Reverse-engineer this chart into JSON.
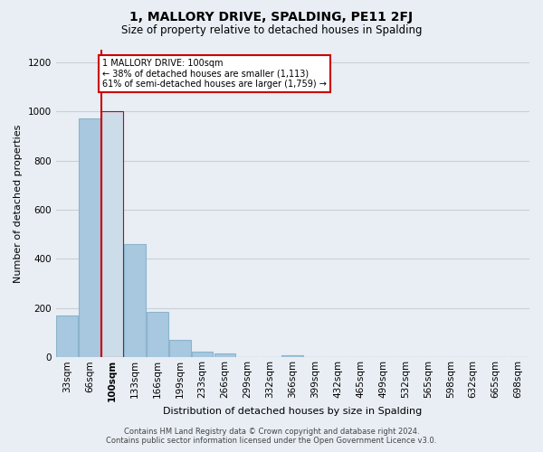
{
  "title": "1, MALLORY DRIVE, SPALDING, PE11 2FJ",
  "subtitle": "Size of property relative to detached houses in Spalding",
  "xlabel": "Distribution of detached houses by size in Spalding",
  "ylabel": "Number of detached properties",
  "bar_labels": [
    "33sqm",
    "66sqm",
    "100sqm",
    "133sqm",
    "166sqm",
    "199sqm",
    "233sqm",
    "266sqm",
    "299sqm",
    "332sqm",
    "366sqm",
    "399sqm",
    "432sqm",
    "465sqm",
    "499sqm",
    "532sqm",
    "565sqm",
    "598sqm",
    "632sqm",
    "665sqm",
    "698sqm"
  ],
  "bar_values": [
    170,
    970,
    1000,
    460,
    185,
    70,
    25,
    15,
    0,
    0,
    10,
    0,
    0,
    0,
    0,
    0,
    0,
    0,
    0,
    0,
    0
  ],
  "highlight_index": 2,
  "highlight_color": "#ccdce8",
  "normal_color": "#a8c8e0",
  "bar_edge_color": "#8ab4cc",
  "highlight_line_color": "#cc0000",
  "annotation_box_color": "#ffffff",
  "annotation_border_color": "#cc0000",
  "annotation_line1": "1 MALLORY DRIVE: 100sqm",
  "annotation_line2": "← 38% of detached houses are smaller (1,113)",
  "annotation_line3": "61% of semi-detached houses are larger (1,759) →",
  "ylim": [
    0,
    1250
  ],
  "yticks": [
    0,
    200,
    400,
    600,
    800,
    1000,
    1200
  ],
  "footer_line1": "Contains HM Land Registry data © Crown copyright and database right 2024.",
  "footer_line2": "Contains public sector information licensed under the Open Government Licence v3.0.",
  "bg_color": "#e8eef4",
  "grid_color": "#c8d0d8",
  "title_fontsize": 10,
  "subtitle_fontsize": 8.5,
  "axis_label_fontsize": 8,
  "tick_fontsize": 7.5,
  "footer_fontsize": 6
}
